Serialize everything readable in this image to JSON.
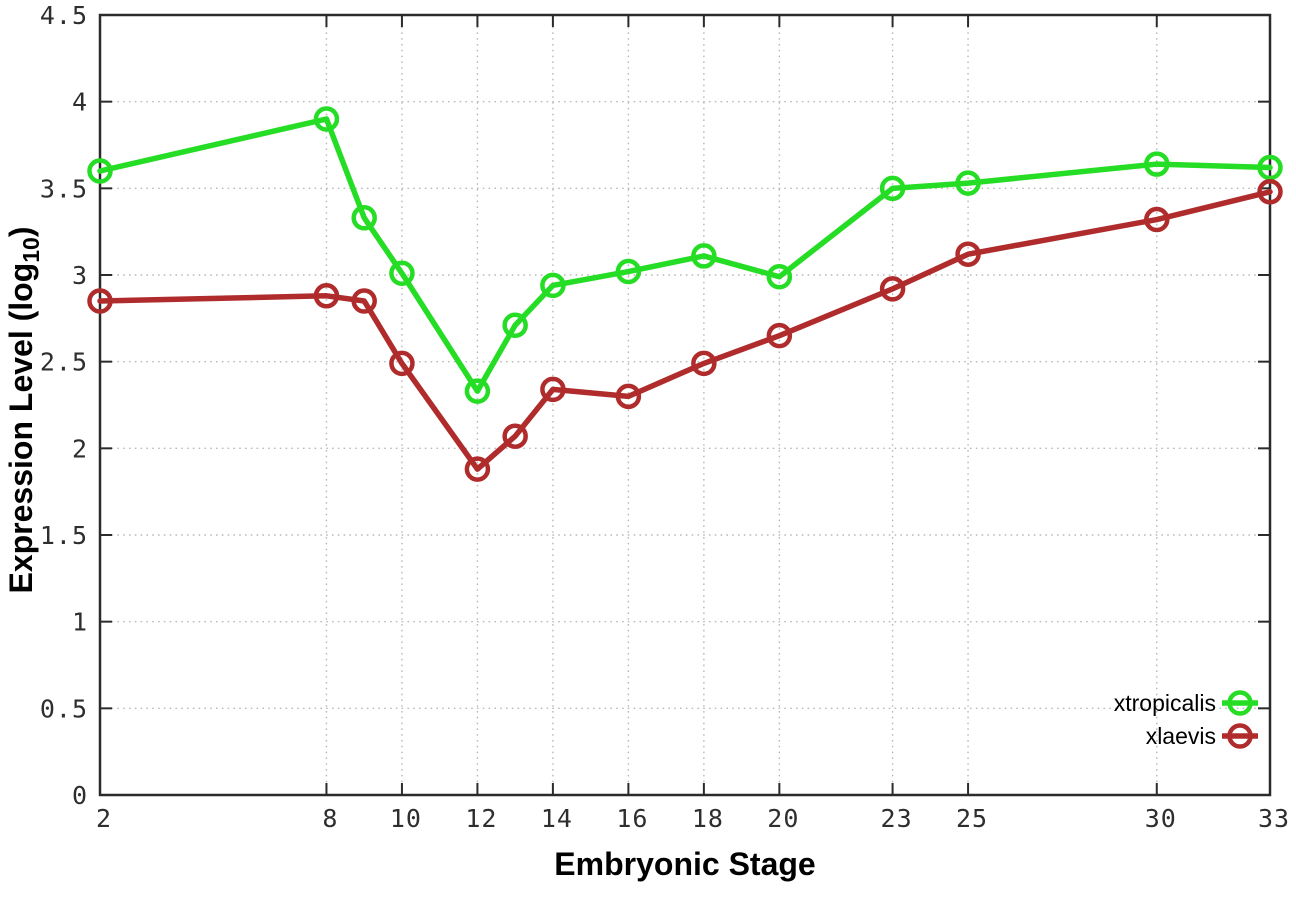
{
  "chart_data": {
    "type": "line",
    "title": "",
    "xlabel": "Embryonic Stage",
    "ylabel": "Expression Level (log10)",
    "ylabel_parts": {
      "prefix": "Expression Level (log",
      "subscript": "10",
      "suffix": ")"
    },
    "x": [
      2,
      8,
      9,
      10,
      12,
      13,
      14,
      16,
      18,
      20,
      23,
      25,
      30,
      33
    ],
    "series": [
      {
        "name": "xtropicalis",
        "color": "#24dd24",
        "values": [
          3.6,
          3.9,
          3.33,
          3.01,
          2.33,
          2.71,
          2.94,
          3.02,
          3.11,
          2.99,
          3.5,
          3.53,
          3.64,
          3.62
        ]
      },
      {
        "name": "xlaevis",
        "color": "#b02c2c",
        "values": [
          2.85,
          2.88,
          2.85,
          2.49,
          1.88,
          2.07,
          2.34,
          2.3,
          2.49,
          2.65,
          2.92,
          3.12,
          3.32,
          3.48
        ]
      }
    ],
    "xlim": [
      2,
      33
    ],
    "ylim": [
      0,
      4.5
    ],
    "xticks": [
      2,
      8,
      10,
      12,
      14,
      16,
      18,
      20,
      23,
      25,
      30,
      33
    ],
    "xtick_labels": [
      "2",
      "8",
      "10",
      "12",
      "14",
      "16",
      "18",
      "20",
      "23",
      "25",
      "30",
      "33"
    ],
    "yticks": [
      0,
      0.5,
      1,
      1.5,
      2,
      2.5,
      3,
      3.5,
      4,
      4.5
    ],
    "ytick_labels": [
      "0",
      "0.5",
      "1",
      "1.5",
      "2",
      "2.5",
      "3",
      "3.5",
      "4",
      "4.5"
    ],
    "grid": true,
    "legend_position": "inside-bottom-right",
    "legend_order": [
      "xtropicalis",
      "xlaevis"
    ]
  },
  "style_colors": {
    "background": "#ffffff",
    "border": "#2b2b2b",
    "grid": "#b9b9b9",
    "tick_text": "#2e2e2e",
    "label_text": "#000000"
  }
}
